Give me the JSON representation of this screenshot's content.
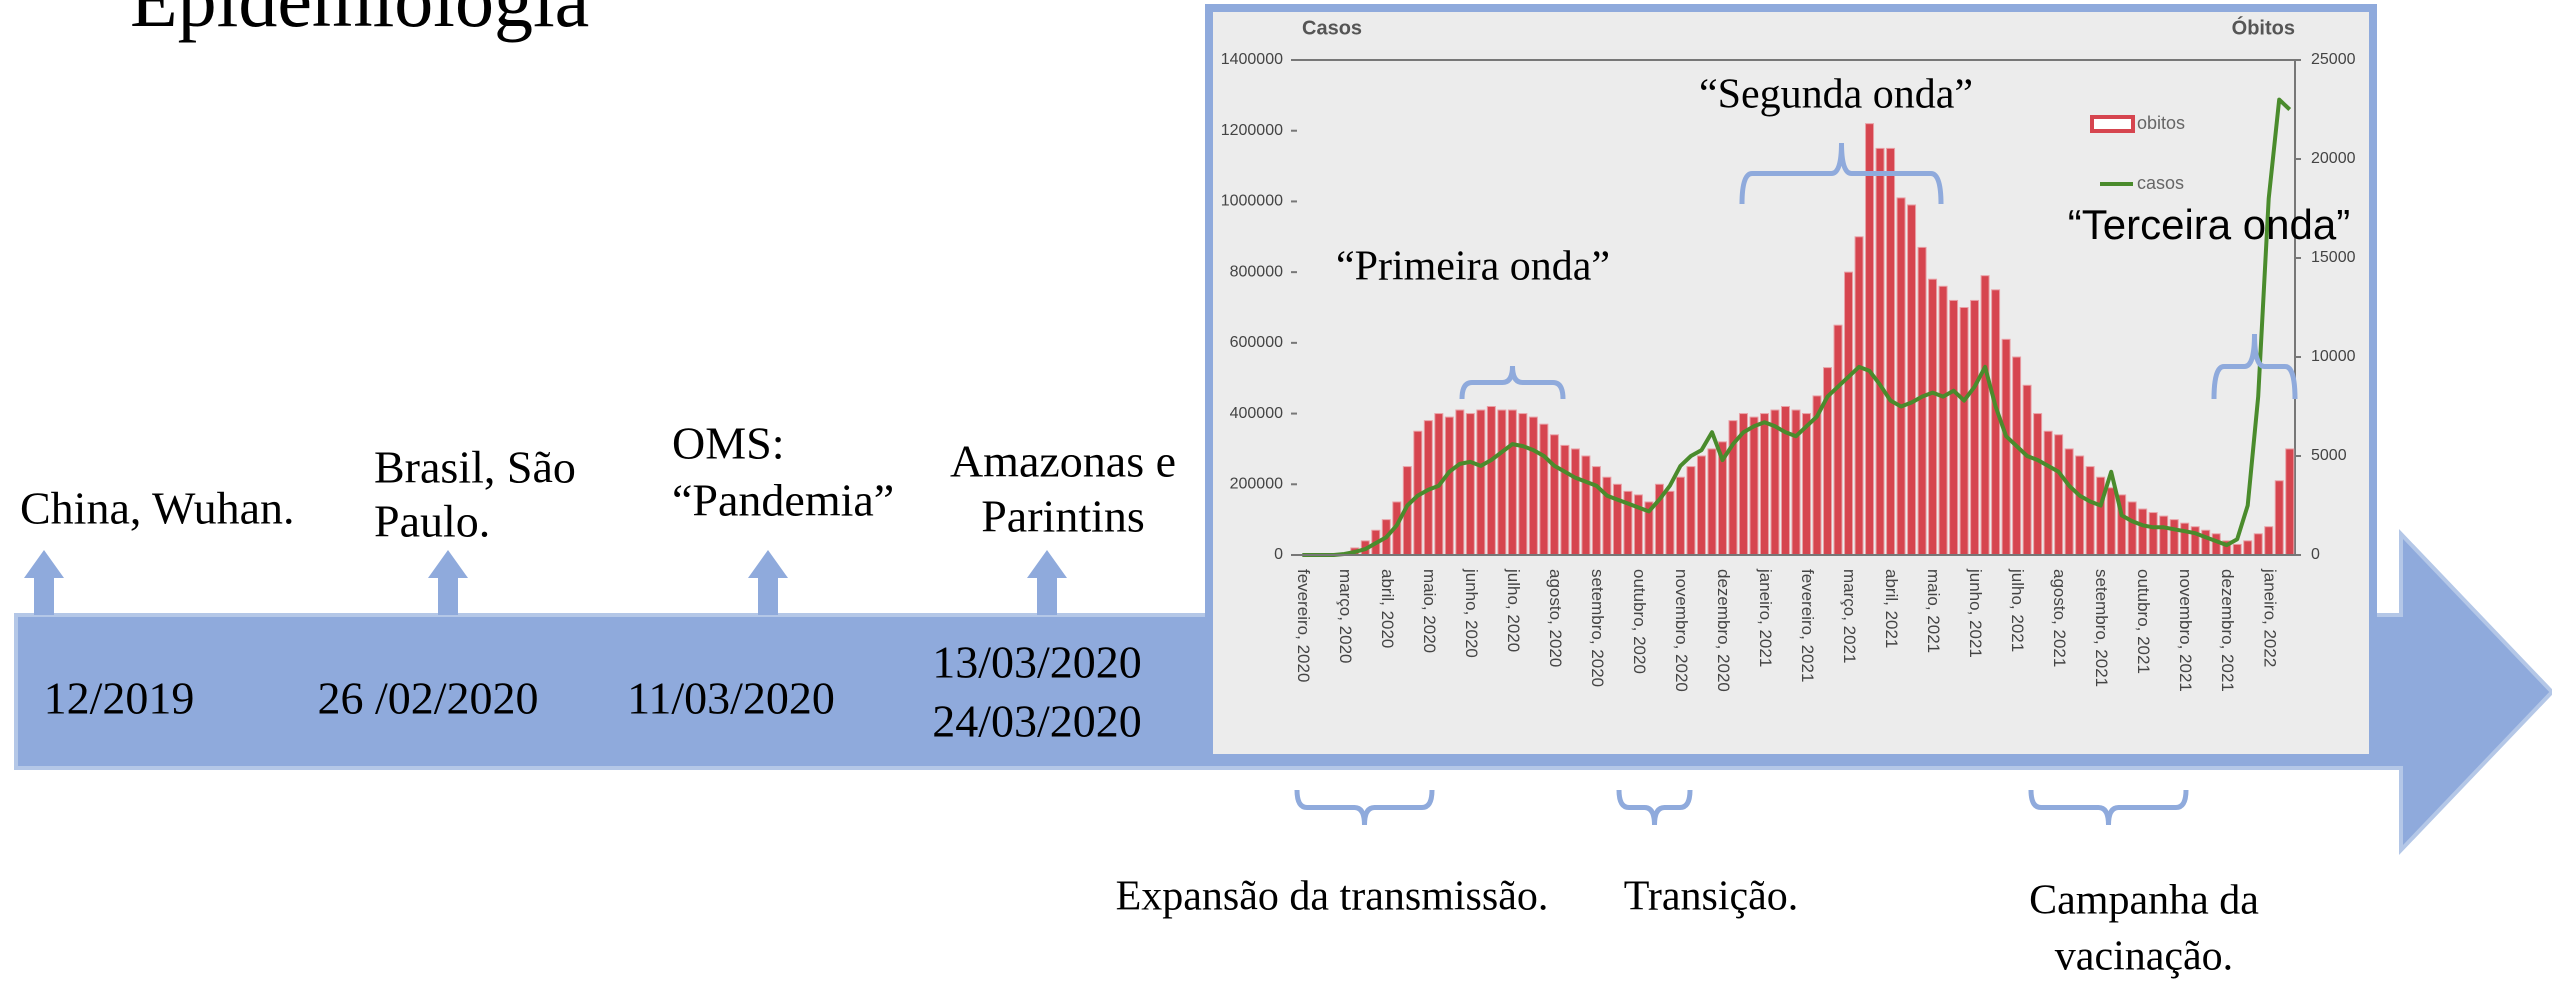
{
  "slide": {
    "title": "Epidemiologia",
    "events": [
      {
        "date": [
          "12/2019"
        ],
        "label": [
          "China, Wuhan."
        ]
      },
      {
        "date": [
          "26 /02/2020"
        ],
        "label": [
          "Brasil, São",
          "Paulo."
        ]
      },
      {
        "date": [
          "11/03/2020"
        ],
        "label": [
          "OMS:",
          "“Pandemia”"
        ]
      },
      {
        "date": [
          "13/03/2020",
          "24/03/2020"
        ],
        "label": [
          "Amazonas e",
          "Parintins"
        ]
      }
    ],
    "phases": [
      [
        "Expansão da transmissão."
      ],
      [
        "Transição."
      ],
      [
        "Campanha da",
        "vacinação."
      ]
    ]
  },
  "chart_data": {
    "type": "bar",
    "ylabel": "Casos",
    "y2label": "Óbitos",
    "annotations": [
      "“Primeira onda”",
      "“Segunda onda”",
      "“Terceira onda”"
    ],
    "categories": [
      "fevereiro, 2020",
      null,
      null,
      null,
      "março, 2020",
      null,
      null,
      null,
      "abril, 2020",
      null,
      null,
      null,
      "maio, 2020",
      null,
      null,
      null,
      "junho, 2020",
      null,
      null,
      null,
      "julho, 2020",
      null,
      null,
      null,
      "agosto, 2020",
      null,
      null,
      null,
      "setembro, 2020",
      null,
      null,
      null,
      "outubro, 2020",
      null,
      null,
      null,
      "novembro, 2020",
      null,
      null,
      null,
      "dezembro, 2020",
      null,
      null,
      null,
      "janeiro, 2021",
      null,
      null,
      null,
      "fevereiro, 2021",
      null,
      null,
      null,
      "março, 2021",
      null,
      null,
      null,
      "abril, 2021",
      null,
      null,
      null,
      "maio, 2021",
      null,
      null,
      null,
      "junho, 2021",
      null,
      null,
      null,
      "julho, 2021",
      null,
      null,
      null,
      "agosto, 2021",
      null,
      null,
      null,
      "setembro, 2021",
      null,
      null,
      null,
      "outubro, 2021",
      null,
      null,
      null,
      "novembro, 2021",
      null,
      null,
      null,
      "dezembro, 2021",
      null,
      null,
      null,
      "janeiro, 2022",
      null,
      null
    ],
    "series": [
      {
        "name": "obitos",
        "color": "#d6454f",
        "type": "bar",
        "values": [
          0,
          0,
          0,
          0,
          5000,
          20000,
          40000,
          70000,
          100000,
          150000,
          250000,
          350000,
          380000,
          400000,
          390000,
          410000,
          400000,
          410000,
          420000,
          410000,
          410000,
          400000,
          390000,
          370000,
          340000,
          310000,
          300000,
          280000,
          250000,
          220000,
          200000,
          180000,
          170000,
          150000,
          200000,
          180000,
          220000,
          250000,
          280000,
          300000,
          320000,
          380000,
          400000,
          390000,
          400000,
          410000,
          420000,
          410000,
          400000,
          450000,
          530000,
          650000,
          800000,
          900000,
          1220000,
          1150000,
          1150000,
          1010000,
          990000,
          870000,
          780000,
          760000,
          720000,
          700000,
          720000,
          790000,
          750000,
          610000,
          560000,
          480000,
          400000,
          350000,
          340000,
          300000,
          280000,
          250000,
          220000,
          190000,
          170000,
          150000,
          130000,
          120000,
          110000,
          100000,
          90000,
          80000,
          70000,
          60000,
          40000,
          30000,
          40000,
          60000,
          80000,
          210000,
          300000
        ]
      },
      {
        "name": "casos",
        "color": "#4a8b2c",
        "type": "line",
        "axis": "y2",
        "values": [
          0,
          0,
          0,
          0,
          50,
          150,
          300,
          600,
          900,
          1500,
          2500,
          3000,
          3300,
          3500,
          4200,
          4600,
          4700,
          4500,
          4800,
          5200,
          5600,
          5500,
          5300,
          5000,
          4500,
          4200,
          3900,
          3700,
          3500,
          3000,
          2800,
          2600,
          2400,
          2200,
          2800,
          3500,
          4500,
          5000,
          5300,
          6200,
          4800,
          5600,
          6200,
          6500,
          6700,
          6500,
          6200,
          6000,
          6500,
          7000,
          8000,
          8500,
          9000,
          9500,
          9300,
          8600,
          7800,
          7500,
          7700,
          8000,
          8200,
          8000,
          8300,
          7800,
          8500,
          9500,
          7500,
          6000,
          5500,
          5000,
          4800,
          4500,
          4200,
          3500,
          3000,
          2700,
          2500,
          4200,
          2000,
          1700,
          1500,
          1400,
          1400,
          1300,
          1200,
          1100,
          900,
          700,
          500,
          800,
          2500,
          8000,
          18000,
          23000,
          22500
        ]
      }
    ],
    "ylim": [
      0,
      1400000
    ],
    "yticks": [
      0,
      200000,
      400000,
      600000,
      800000,
      1000000,
      1200000,
      1400000
    ],
    "y2lim": [
      0,
      25000
    ],
    "y2ticks": [
      0,
      5000,
      10000,
      15000,
      20000,
      25000
    ]
  }
}
